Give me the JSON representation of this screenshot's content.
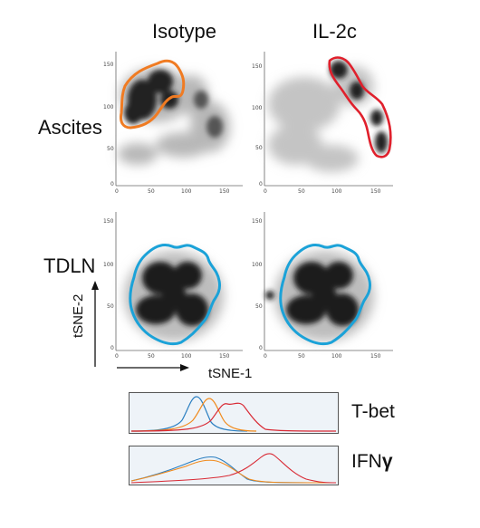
{
  "columns": [
    "Isotype",
    "IL-2c"
  ],
  "rows": [
    "Ascites",
    "TDLN"
  ],
  "axes": {
    "x_label": "tSNE-1",
    "y_label": "tSNE-2",
    "ticks": [
      "0",
      "50",
      "100",
      "150"
    ]
  },
  "histograms": [
    {
      "label": "T-bet",
      "colors": [
        "#2b7fc1",
        "#f08a1c",
        "#d92a35"
      ]
    },
    {
      "label": "IFNγ",
      "label_text": "IFN",
      "label_symbol": "γ",
      "colors": [
        "#2b7fc1",
        "#f08a1c",
        "#d92a35"
      ]
    }
  ],
  "gate_colors": {
    "ascites_isotype": "#f07b22",
    "ascites_il2c": "#e0202c",
    "tdln": "#1ba2d8"
  }
}
